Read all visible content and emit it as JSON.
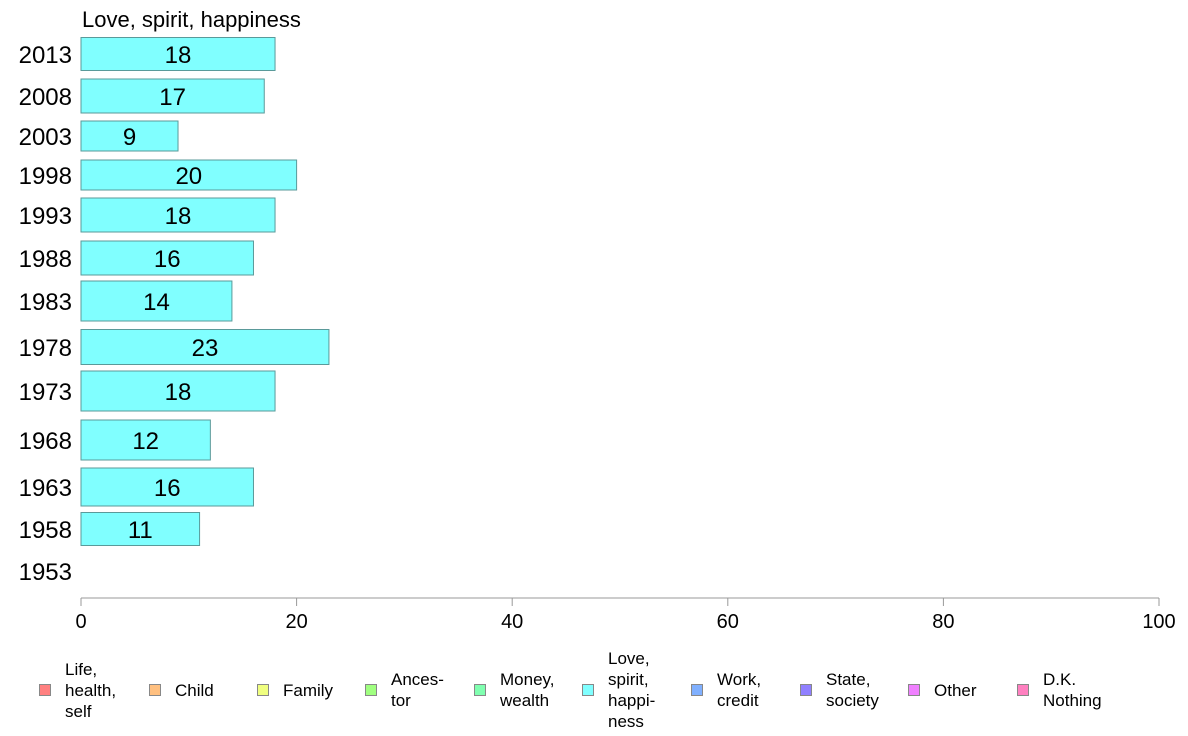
{
  "chart_data": {
    "type": "bar",
    "orientation": "horizontal",
    "title": "Love, spirit, happiness",
    "categories": [
      "2013",
      "2008",
      "2003",
      "1998",
      "1993",
      "1988",
      "1983",
      "1978",
      "1973",
      "1968",
      "1963",
      "1958",
      "1953"
    ],
    "values": [
      18,
      17,
      9,
      20,
      18,
      16,
      14,
      23,
      18,
      12,
      16,
      11,
      null
    ],
    "value_labels": [
      "18",
      "17",
      "9",
      "20",
      "18",
      "16",
      "14",
      "23",
      "18",
      "12",
      "16",
      "11",
      ""
    ],
    "xlim": [
      0,
      100
    ],
    "xticks": [
      "0",
      "20",
      "40",
      "60",
      "80",
      "100"
    ],
    "bar_color": "#80ffff",
    "grid": false,
    "legend_position": "bottom",
    "legend": [
      {
        "label": "Life,\nhealth,\nself",
        "color": "#ff8080"
      },
      {
        "label": "Child",
        "color": "#ffc080"
      },
      {
        "label": "Family",
        "color": "#f0ff80"
      },
      {
        "label": "Ances-\ntor",
        "color": "#a0ff80"
      },
      {
        "label": "Money,\nwealth",
        "color": "#80ffb0"
      },
      {
        "label": "Love,\nspirit,\nhappi-\nness",
        "color": "#80ffff"
      },
      {
        "label": "Work,\ncredit",
        "color": "#80b0ff"
      },
      {
        "label": "State,\nsociety",
        "color": "#9080ff"
      },
      {
        "label": "Other",
        "color": "#f080ff"
      },
      {
        "label": "D.K.\nNothing",
        "color": "#ff80c0"
      }
    ]
  }
}
